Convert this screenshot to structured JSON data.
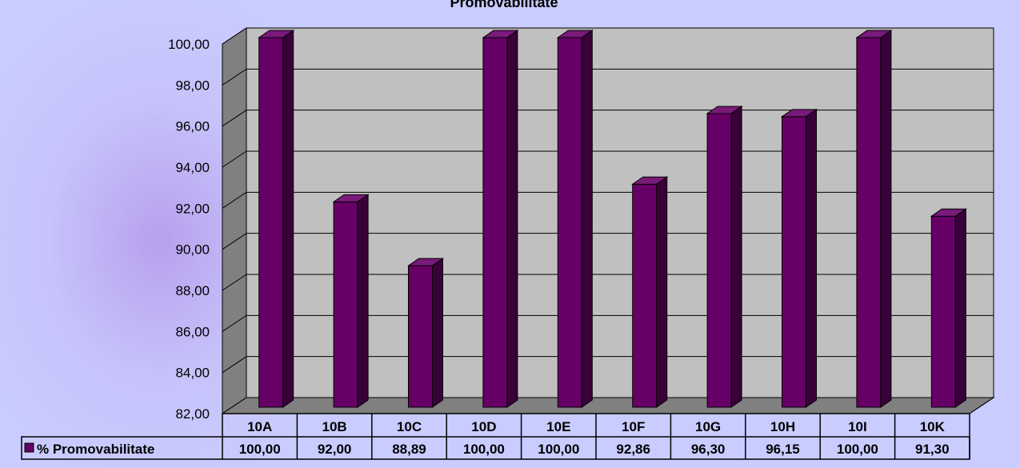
{
  "chart_data": {
    "type": "bar",
    "title": "Promovabilitate",
    "categories": [
      "10A",
      "10B",
      "10C",
      "10D",
      "10E",
      "10F",
      "10G",
      "10H",
      "10I",
      "10K"
    ],
    "series": [
      {
        "name": "% Promovabilitate",
        "values": [
          100.0,
          92.0,
          88.89,
          100.0,
          100.0,
          92.86,
          96.3,
          96.15,
          100.0,
          91.3
        ],
        "value_labels": [
          "100,00",
          "92,00",
          "88,89",
          "100,00",
          "100,00",
          "92,86",
          "96,30",
          "96,15",
          "100,00",
          "91,30"
        ],
        "color": "#660066"
      }
    ],
    "ylim": [
      82,
      100
    ],
    "yticks": [
      82,
      84,
      86,
      88,
      90,
      92,
      94,
      96,
      98,
      100
    ],
    "ytick_labels": [
      "82,00",
      "84,00",
      "86,00",
      "88,00",
      "90,00",
      "92,00",
      "94,00",
      "96,00",
      "98,00",
      "100,00"
    ],
    "grid": true,
    "legend": "data-table-left",
    "wall_color": "#c0c0c0",
    "background_color": "#c9ccff"
  }
}
